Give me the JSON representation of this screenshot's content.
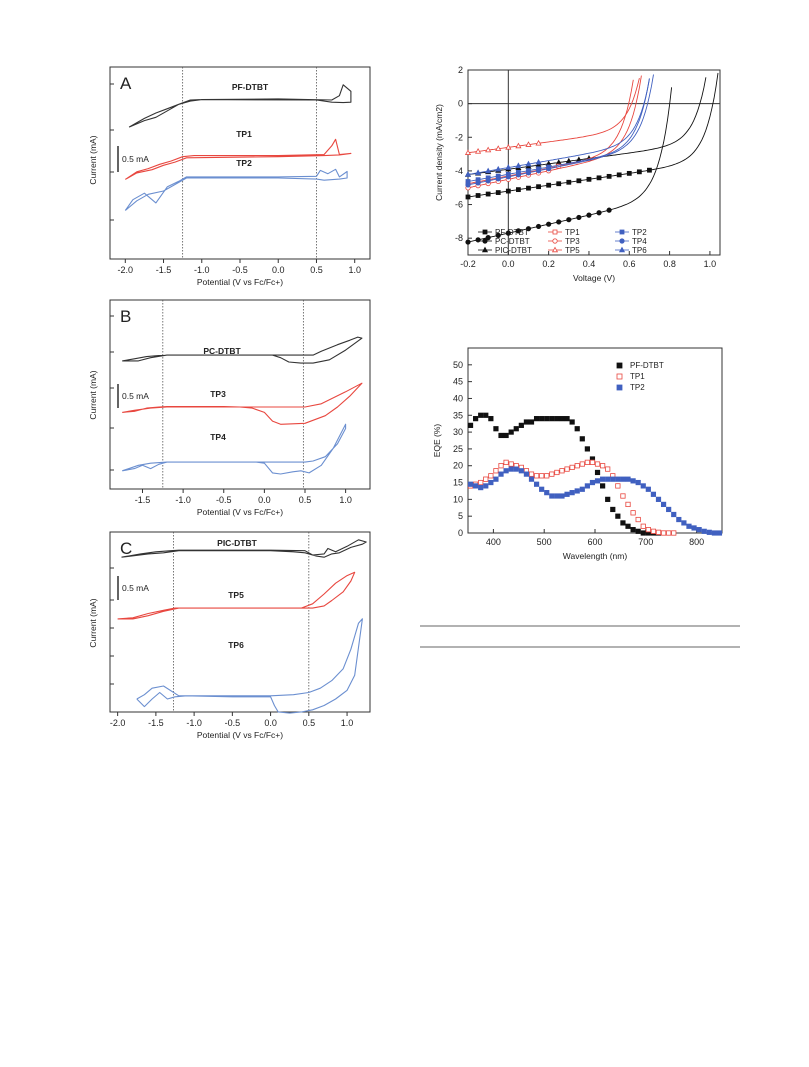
{
  "chart_data": [
    {
      "id": "cvA",
      "type": "line",
      "panel_label": "A",
      "xlabel": "Potential (V vs Fc/Fc+)",
      "ylabel": "Current (mA)",
      "scale_label": "0.5 mA",
      "xlim": [
        -2.2,
        1.2
      ],
      "xticks": [
        "-2.0",
        "-1.5",
        "-1.0",
        "-0.5",
        "0.0",
        "0.5",
        "1.0"
      ],
      "xtick_values": [
        -2.0,
        -1.5,
        -1.0,
        -0.5,
        0.0,
        0.5,
        1.0
      ],
      "dotted_lines": [
        -1.25,
        0.5
      ],
      "series": [
        {
          "name": "PF-DTBT",
          "color": "#333333",
          "x": [
            -1.95,
            -1.75,
            -1.6,
            -1.45,
            -1.3,
            -1.15,
            -1.0,
            0.0,
            0.7,
            0.8,
            0.85,
            0.95,
            0.95,
            0.85,
            0.7,
            0.5,
            -1.0,
            -1.15,
            -1.3,
            -1.45,
            -1.6,
            -1.75,
            -1.95
          ],
          "y": [
            0.15,
            0.45,
            0.6,
            0.9,
            1.2,
            1.4,
            1.42,
            1.45,
            1.4,
            1.6,
            2.1,
            1.8,
            1.3,
            1.28,
            1.3,
            1.4,
            1.42,
            1.35,
            1.2,
            1.0,
            0.8,
            0.55,
            0.15
          ]
        },
        {
          "name": "TP1",
          "color": "#e8473f",
          "x": [
            -2.0,
            -1.85,
            -1.7,
            -1.55,
            -1.4,
            -1.25,
            -1.1,
            0.0,
            0.6,
            0.7,
            0.75,
            0.8,
            0.95,
            0.8,
            0.6,
            0.0,
            -1.2,
            -1.35,
            -1.5,
            -1.65,
            -1.85,
            -2.0
          ],
          "y": [
            -1.25,
            -0.9,
            -0.75,
            -0.55,
            -0.4,
            -0.2,
            -0.15,
            -0.15,
            -0.1,
            0.3,
            0.6,
            -0.1,
            -0.05,
            -0.12,
            -0.15,
            -0.2,
            -0.25,
            -0.45,
            -0.6,
            -0.8,
            -0.95,
            -1.25
          ]
        },
        {
          "name": "TP2",
          "color": "#6b8fd0",
          "x": [
            -2.0,
            -1.9,
            -1.75,
            -1.6,
            -1.45,
            -1.3,
            -1.2,
            0.0,
            0.5,
            0.55,
            0.65,
            0.75,
            0.8,
            0.9,
            0.9,
            0.8,
            0.6,
            0.5,
            0.0,
            -1.2,
            -1.35,
            -1.5,
            -1.7,
            -1.85,
            -2.0
          ],
          "y": [
            -2.3,
            -1.8,
            -1.5,
            -1.95,
            -1.2,
            -0.95,
            -0.75,
            -0.75,
            -0.72,
            -0.45,
            -0.6,
            -0.4,
            -0.75,
            -0.5,
            -0.8,
            -0.85,
            -0.9,
            -0.85,
            -0.8,
            -0.8,
            -1.1,
            -1.4,
            -1.55,
            -1.85,
            -2.3
          ]
        }
      ]
    },
    {
      "id": "cvB",
      "type": "line",
      "panel_label": "B",
      "xlabel": "Potential (V vs Fc/Fc+)",
      "ylabel": "Current (mA)",
      "scale_label": "0.5 mA",
      "xlim": [
        -1.9,
        1.3
      ],
      "xticks": [
        "-1.5",
        "-1.0",
        "-0.5",
        "0.0",
        "0.5",
        "1.0"
      ],
      "xtick_values": [
        -1.5,
        -1.0,
        -0.5,
        0.0,
        0.5,
        1.0
      ],
      "dotted_lines": [
        -1.25,
        0.48
      ],
      "series": [
        {
          "name": "PC-DTBT",
          "color": "#333333",
          "x": [
            -1.75,
            -1.6,
            -1.45,
            -1.3,
            -1.2,
            0.0,
            0.6,
            0.7,
            0.9,
            1.05,
            1.15,
            1.2,
            1.0,
            0.8,
            0.6,
            0.45,
            0.3,
            0.2,
            0.1,
            0.0,
            -0.5,
            -1.2,
            -1.4,
            -1.55,
            -1.75
          ],
          "y": [
            1.45,
            1.55,
            1.65,
            1.7,
            1.72,
            1.72,
            1.72,
            1.9,
            2.2,
            2.4,
            2.55,
            2.5,
            1.95,
            1.5,
            1.35,
            1.35,
            1.4,
            1.6,
            1.72,
            1.72,
            1.72,
            1.72,
            1.6,
            1.45,
            1.45
          ]
        },
        {
          "name": "TP3",
          "color": "#e8473f",
          "x": [
            -1.75,
            -1.6,
            -1.45,
            -1.3,
            -1.2,
            -0.5,
            -0.3,
            -0.15,
            0.0,
            0.1,
            0.2,
            0.5,
            0.75,
            0.9,
            1.05,
            1.2,
            1.2,
            1.0,
            0.7,
            0.5,
            0.3,
            -1.2,
            -1.4,
            -1.6,
            -1.75
          ],
          "y": [
            -0.05,
            0.0,
            0.15,
            0.2,
            0.22,
            0.22,
            0.2,
            0.15,
            -0.05,
            -0.45,
            -0.6,
            -0.55,
            -0.2,
            0.2,
            0.7,
            1.3,
            1.3,
            0.9,
            0.35,
            0.2,
            0.2,
            0.2,
            0.15,
            0.05,
            -0.05
          ]
        },
        {
          "name": "TP4",
          "color": "#6b8fd0",
          "x": [
            -1.75,
            -1.6,
            -1.5,
            -1.4,
            -1.3,
            -1.2,
            -0.2,
            -0.1,
            0.0,
            0.1,
            0.2,
            0.35,
            0.45,
            0.55,
            0.7,
            0.85,
            1.0,
            1.0,
            0.9,
            0.75,
            0.6,
            0.5,
            -1.2,
            -1.4,
            -1.55,
            -1.75
          ],
          "y": [
            -1.85,
            -1.75,
            -1.6,
            -1.75,
            -1.55,
            -1.45,
            -1.45,
            -1.45,
            -1.5,
            -1.95,
            -2.0,
            -1.9,
            -1.85,
            -1.95,
            -1.6,
            -0.8,
            0.3,
            0.1,
            -0.6,
            -1.2,
            -1.4,
            -1.45,
            -1.45,
            -1.5,
            -1.6,
            -1.85
          ]
        }
      ]
    },
    {
      "id": "cvC",
      "type": "line",
      "panel_label": "C",
      "xlabel": "Potential (V vs Fc/Fc+)",
      "ylabel": "Current (mA)",
      "scale_label": "0.5 mA",
      "xlim": [
        -2.1,
        1.3
      ],
      "xticks": [
        "-2.0",
        "-1.5",
        "-1.0",
        "-0.5",
        "0.0",
        "0.5",
        "1.0"
      ],
      "xtick_values": [
        -2.0,
        -1.5,
        -1.0,
        -0.5,
        0.0,
        0.5,
        1.0
      ],
      "dotted_lines": [
        -1.27,
        0.5
      ],
      "series": [
        {
          "name": "PIC-DTBT",
          "color": "#333333",
          "x": [
            -1.95,
            -1.7,
            -1.5,
            -1.3,
            -1.2,
            0.0,
            0.45,
            0.55,
            0.7,
            0.75,
            0.85,
            1.0,
            1.15,
            1.25,
            1.2,
            1.05,
            0.9,
            0.8,
            0.7,
            0.6,
            0.45,
            0.3,
            0.0,
            -1.2,
            -1.4,
            -1.6,
            -1.95
          ],
          "y": [
            1.3,
            1.45,
            1.55,
            1.6,
            1.62,
            1.62,
            1.6,
            1.4,
            1.45,
            1.7,
            1.55,
            1.8,
            2.1,
            2.0,
            1.9,
            1.75,
            1.5,
            1.45,
            1.3,
            1.35,
            1.5,
            1.55,
            1.6,
            1.6,
            1.5,
            1.45,
            1.3
          ]
        },
        {
          "name": "TP5",
          "color": "#e8473f",
          "x": [
            -2.0,
            -1.8,
            -1.6,
            -1.4,
            -1.25,
            -1.1,
            0.0,
            0.4,
            0.55,
            0.7,
            0.85,
            1.0,
            1.1,
            1.05,
            0.95,
            0.8,
            0.7,
            0.55,
            0.4,
            0.0,
            -1.2,
            -1.4,
            -1.6,
            -1.8,
            -2.0
          ],
          "y": [
            -0.35,
            -0.3,
            -0.1,
            0.05,
            0.15,
            0.15,
            0.15,
            0.15,
            0.35,
            0.8,
            1.3,
            1.65,
            1.8,
            1.4,
            0.9,
            0.5,
            0.25,
            0.15,
            0.15,
            0.15,
            0.15,
            0.0,
            -0.2,
            -0.35,
            -0.35
          ]
        },
        {
          "name": "TP6",
          "color": "#6b8fd0",
          "x": [
            -1.75,
            -1.65,
            -1.55,
            -1.45,
            -1.35,
            -1.25,
            -1.1,
            -0.5,
            0.0,
            0.05,
            0.1,
            0.25,
            0.4,
            0.55,
            0.7,
            0.85,
            1.0,
            1.1,
            1.2,
            1.15,
            1.05,
            0.95,
            0.8,
            0.65,
            0.5,
            0.3,
            0.0,
            -1.2,
            -1.4,
            -1.55,
            -1.65,
            -1.75
          ],
          "y": [
            -2.6,
            -2.95,
            -2.6,
            -2.3,
            -2.6,
            -2.5,
            -2.45,
            -2.5,
            -2.5,
            -2.9,
            -3.2,
            -3.25,
            -3.2,
            -3.1,
            -2.9,
            -2.6,
            -2.2,
            -1.5,
            1.1,
            0.9,
            -0.3,
            -1.2,
            -1.75,
            -2.1,
            -2.3,
            -2.4,
            -2.45,
            -2.45,
            -2.0,
            -2.1,
            -2.4,
            -2.6
          ]
        }
      ]
    },
    {
      "id": "jv",
      "type": "line",
      "xlabel": "Voltage (V)",
      "ylabel": "Current density (mA/cm2)",
      "xlim": [
        -0.2,
        1.05
      ],
      "ylim": [
        -9,
        2
      ],
      "xticks": [
        -0.2,
        0.0,
        0.2,
        0.4,
        0.6,
        0.8,
        1.0
      ],
      "xtick_labels": [
        "-0.2",
        "0.0",
        "0.2",
        "0.4",
        "0.6",
        "0.8",
        "1.0"
      ],
      "yticks": [
        -8,
        -6,
        -4,
        -2,
        0,
        2
      ],
      "ytick_labels": [
        "-8",
        "-6",
        "-4",
        "-2",
        "0",
        "2"
      ],
      "series": [
        {
          "name": "PF-DTBT",
          "color": "#111111",
          "marker": "square-filled",
          "voc": 1.04,
          "jsc": -5.2,
          "jstart": -5.4,
          "n": 16
        },
        {
          "name": "PC-DTBT",
          "color": "#111111",
          "marker": "circle-filled",
          "voc": 0.82,
          "jsc": -7.7,
          "jstart": -7.95,
          "n": 12
        },
        {
          "name": "PIC-DTBT",
          "color": "#111111",
          "marker": "triangle-filled",
          "voc": 0.98,
          "jsc": -3.9,
          "jstart": -4.1,
          "n": 10
        },
        {
          "name": "TP1",
          "color": "#e8473f",
          "marker": "square-open",
          "voc": 0.62,
          "jsc": -4.3,
          "jstart": -4.55,
          "n": 7
        },
        {
          "name": "TP3",
          "color": "#e8473f",
          "marker": "circle-open",
          "voc": 0.66,
          "jsc": -4.5,
          "jstart": -4.8,
          "n": 6
        },
        {
          "name": "TP5",
          "color": "#e8473f",
          "marker": "triangle-open",
          "voc": 0.64,
          "jsc": -2.6,
          "jstart": -2.8,
          "n": 5
        },
        {
          "name": "TP2",
          "color": "#4060c0",
          "marker": "square-filled",
          "voc": 0.7,
          "jsc": -4.2,
          "jstart": -4.45,
          "n": 6
        },
        {
          "name": "TP4",
          "color": "#4060c0",
          "marker": "circle-filled",
          "voc": 0.72,
          "jsc": -4.35,
          "jstart": -4.65,
          "n": 6
        },
        {
          "name": "TP6",
          "color": "#4060c0",
          "marker": "triangle-filled",
          "voc": 0.7,
          "jsc": -3.8,
          "jstart": -4.05,
          "n": 5
        }
      ]
    },
    {
      "id": "eqe",
      "type": "scatter",
      "xlabel": "Wavelength (nm)",
      "ylabel": "EQE (%)",
      "xlim": [
        350,
        850
      ],
      "ylim": [
        0,
        55
      ],
      "xticks": [
        400,
        500,
        600,
        700,
        800
      ],
      "xtick_labels": [
        "400",
        "500",
        "600",
        "700",
        "800"
      ],
      "yticks": [
        0,
        5,
        10,
        15,
        20,
        25,
        30,
        35,
        40,
        45,
        50
      ],
      "ytick_labels": [
        "0",
        "5",
        "10",
        "15",
        "20",
        "25",
        "30",
        "35",
        "40",
        "45",
        "50"
      ],
      "series": [
        {
          "name": "PF-DTBT",
          "color": "#111111",
          "marker": "square-filled",
          "x": [
            355,
            365,
            375,
            385,
            395,
            405,
            415,
            425,
            435,
            445,
            455,
            465,
            475,
            485,
            495,
            505,
            515,
            525,
            535,
            545,
            555,
            565,
            575,
            585,
            595,
            605,
            615,
            625,
            635,
            645,
            655,
            665,
            675,
            685,
            695,
            705,
            715,
            725
          ],
          "y": [
            32,
            34,
            35,
            35,
            34,
            31,
            29,
            29,
            30,
            31,
            32,
            33,
            33,
            34,
            34,
            34,
            34,
            34,
            34,
            34,
            33,
            31,
            28,
            25,
            22,
            18,
            14,
            10,
            7,
            5,
            3,
            2,
            1,
            0.5,
            0,
            0,
            0,
            0
          ]
        },
        {
          "name": "TP1",
          "color": "#e8473f",
          "marker": "square-open",
          "x": [
            355,
            365,
            375,
            385,
            395,
            405,
            415,
            425,
            435,
            445,
            455,
            465,
            475,
            485,
            495,
            505,
            515,
            525,
            535,
            545,
            555,
            565,
            575,
            585,
            595,
            605,
            615,
            625,
            635,
            645,
            655,
            665,
            675,
            685,
            695,
            705,
            715,
            725,
            735,
            745,
            755
          ],
          "y": [
            14,
            14.5,
            15,
            16,
            17,
            18.5,
            20,
            21,
            20.5,
            20,
            19.5,
            18.5,
            17.5,
            17,
            17,
            17,
            17.5,
            18,
            18.5,
            19,
            19.5,
            20,
            20.5,
            21,
            21,
            20.5,
            20,
            19,
            17,
            14,
            11,
            8.5,
            6,
            4,
            2,
            1,
            0.5,
            0.2,
            0,
            0,
            0
          ]
        },
        {
          "name": "TP2",
          "color": "#4060c0",
          "marker": "square-filled",
          "x": [
            355,
            365,
            375,
            385,
            395,
            405,
            415,
            425,
            435,
            445,
            455,
            465,
            475,
            485,
            495,
            505,
            515,
            525,
            535,
            545,
            555,
            565,
            575,
            585,
            595,
            605,
            615,
            625,
            635,
            645,
            655,
            665,
            675,
            685,
            695,
            705,
            715,
            725,
            735,
            745,
            755,
            765,
            775,
            785,
            795,
            805,
            815,
            825,
            835,
            845
          ],
          "y": [
            14.5,
            14,
            13.5,
            14,
            15,
            16,
            17.5,
            18.5,
            19,
            19,
            18.5,
            17.5,
            16,
            14.5,
            13,
            12,
            11,
            11,
            11,
            11.5,
            12,
            12.5,
            13,
            14,
            15,
            15.5,
            16,
            16,
            16,
            16,
            16,
            16,
            15.5,
            15,
            14,
            13,
            11.5,
            10,
            8.5,
            7,
            5.5,
            4,
            3,
            2,
            1.5,
            1,
            0.5,
            0.2,
            0,
            0
          ]
        }
      ]
    }
  ]
}
